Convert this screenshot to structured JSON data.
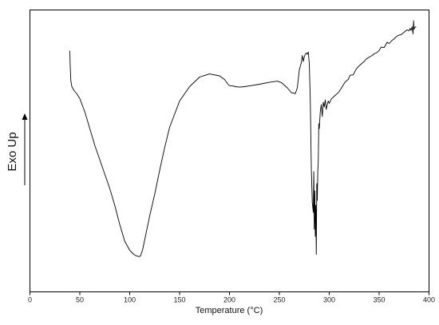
{
  "chart_data": {
    "type": "line",
    "title": "",
    "xlabel": "Temperature (°C)",
    "ylabel": "Exo Up",
    "xlim": [
      0,
      400
    ],
    "ylim": [
      0,
      100
    ],
    "x_ticks": [
      "0",
      "50",
      "100",
      "150",
      "200",
      "250",
      "300",
      "350",
      "400"
    ],
    "y_ticks_shown": false,
    "grid": false,
    "legend": "none",
    "line_color": "#000000",
    "arrow_direction": "up",
    "series": [
      {
        "x": [
          40,
          40.3,
          40.6,
          41,
          42,
          44,
          47,
          50,
          55,
          60,
          65,
          70,
          75,
          80,
          85,
          90,
          95,
          100,
          104,
          107,
          109,
          110,
          111,
          113,
          116,
          120,
          125,
          130,
          135,
          140,
          150,
          160,
          170,
          180,
          190,
          195,
          199,
          201,
          203,
          206,
          210,
          215,
          220,
          230,
          240,
          248,
          252,
          258,
          262,
          266,
          268,
          270,
          272,
          273,
          274,
          275,
          276,
          277,
          278,
          279,
          280,
          281,
          282,
          283,
          284,
          284.5,
          285,
          285.5,
          286,
          286.5,
          287,
          287.5,
          288,
          288.5,
          289,
          289.5,
          290,
          291,
          292,
          293,
          294,
          295,
          296,
          297,
          298,
          299,
          300,
          302,
          305,
          308,
          310,
          313,
          316,
          319,
          321,
          324,
          327,
          330,
          333,
          335,
          337,
          340,
          343,
          345,
          348,
          350,
          352,
          355,
          358,
          360,
          363,
          365,
          368,
          370,
          372,
          375,
          378,
          380,
          381,
          382,
          383,
          384,
          384.5,
          385,
          385.5,
          386,
          386.5,
          387
        ],
        "y": [
          86.5,
          81,
          78,
          74,
          71.5,
          70,
          68.5,
          66.5,
          61,
          54,
          47,
          41,
          35,
          29,
          22,
          14,
          7,
          3.2,
          1.5,
          0.8,
          0.6,
          0.6,
          1.0,
          3.5,
          9.5,
          17.5,
          26.5,
          36.5,
          46,
          54.5,
          65.5,
          71.5,
          75.5,
          76.8,
          76,
          74.5,
          72.2,
          71.8,
          71.8,
          71.5,
          71.3,
          71.5,
          71.8,
          72.5,
          73.3,
          73.8,
          73.2,
          71,
          69,
          68.6,
          71,
          78.5,
          81.5,
          84.5,
          82,
          84,
          85,
          85.5,
          85,
          86,
          81,
          66,
          38,
          23,
          19,
          36,
          12,
          28,
          9,
          22,
          1.5,
          31,
          24,
          36,
          40,
          56,
          54,
          61,
          64,
          59,
          65,
          63,
          66,
          62,
          64,
          65.5,
          64.5,
          66.3,
          67.5,
          68.6,
          69.5,
          71.5,
          73.5,
          74.5,
          76.3,
          76.4,
          78.8,
          80.2,
          81.3,
          82,
          83,
          83.8,
          84.5,
          85.2,
          85.8,
          86.6,
          88,
          87.8,
          90,
          89.5,
          90.8,
          91.5,
          92.6,
          93,
          93.2,
          94.2,
          95.2,
          94.8,
          95.8,
          95,
          96.5,
          93.5,
          99,
          95.5,
          95.9,
          96.3,
          96.4,
          96.6
        ]
      }
    ]
  }
}
